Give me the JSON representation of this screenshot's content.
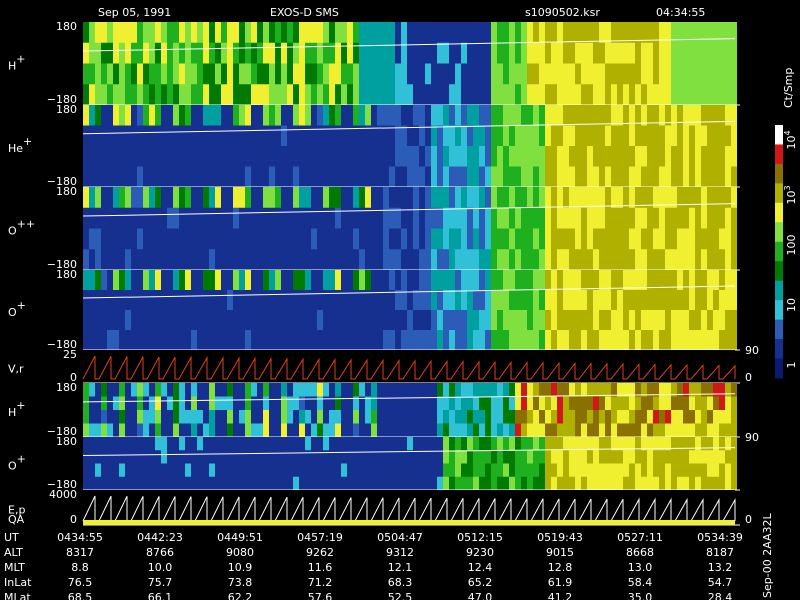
{
  "header": {
    "date": "Sep 05, 1991",
    "instrument": "EXOS-D SMS",
    "file": "s1090502.ksr",
    "time": "04:34:55"
  },
  "panels": [
    {
      "label": "H",
      "charge": "+",
      "ticks": [
        "180",
        "−180"
      ]
    },
    {
      "label": "He",
      "charge": "+",
      "ticks": [
        "180",
        "−180"
      ]
    },
    {
      "label": "O",
      "charge": "++",
      "ticks": [
        "180",
        "−180"
      ]
    },
    {
      "label": "O",
      "charge": "+",
      "ticks": [
        "180",
        "−180"
      ]
    },
    {
      "label": "V,r",
      "charge": "",
      "ticks": [
        "25",
        "0"
      ],
      "right_ticks": [
        "90",
        "0"
      ]
    },
    {
      "label": "H",
      "charge": "+",
      "ticks": [
        "180",
        "−180"
      ]
    },
    {
      "label": "O",
      "charge": "+",
      "ticks": [
        "180",
        "−180"
      ],
      "right_ticks": [
        "90"
      ]
    },
    {
      "label": "E,p",
      "label2": "QA",
      "charge": "",
      "ticks": [
        "4000",
        "0"
      ],
      "right_ticks": [
        "0"
      ]
    }
  ],
  "colorbar": {
    "unit": "Ct/Smp",
    "ticks": [
      {
        "base": "10",
        "exp": "4"
      },
      {
        "base": "10",
        "exp": "3"
      },
      {
        "base": "100",
        "exp": ""
      },
      {
        "base": "10",
        "exp": ""
      },
      {
        "base": "1",
        "exp": ""
      }
    ]
  },
  "ephemeris": {
    "rows": [
      {
        "name": "UT",
        "values": [
          "0434:55",
          "0442:23",
          "0449:51",
          "0457:19",
          "0504:47",
          "0512:15",
          "0519:43",
          "0527:11",
          "0534:39"
        ]
      },
      {
        "name": "ALT",
        "values": [
          "8317",
          "8766",
          "9080",
          "9262",
          "9312",
          "9230",
          "9015",
          "8668",
          "8187"
        ]
      },
      {
        "name": "MLT",
        "values": [
          "8.8",
          "10.0",
          "10.9",
          "11.6",
          "12.1",
          "12.4",
          "12.8",
          "13.0",
          "13.2"
        ]
      },
      {
        "name": "InLat",
        "values": [
          "76.5",
          "75.7",
          "73.8",
          "71.2",
          "68.3",
          "65.2",
          "61.9",
          "58.4",
          "54.7"
        ]
      },
      {
        "name": "MLat",
        "values": [
          "68.5",
          "66.1",
          "62.2",
          "57.6",
          "52.5",
          "47.0",
          "41.2",
          "35.0",
          "28.4"
        ]
      }
    ],
    "footer": "Sep-00  2AA32L"
  }
}
